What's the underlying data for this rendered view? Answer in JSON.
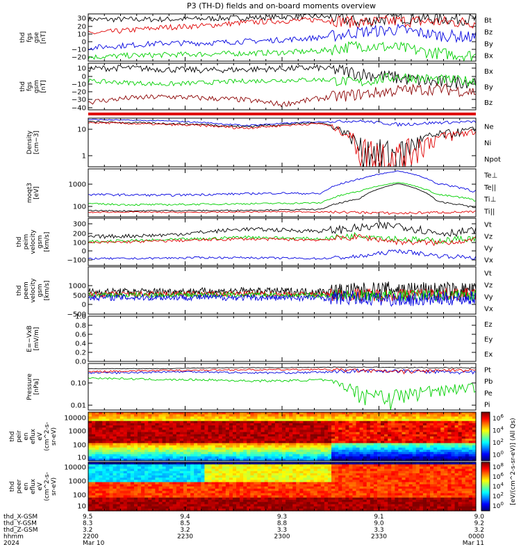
{
  "title": "P3 (TH-D) fields and on-board moments overview",
  "colors": {
    "black": "#000000",
    "red": "#e00000",
    "green": "#00d000",
    "blue": "#0000e0",
    "darkred": "#8b0000"
  },
  "panels": [
    {
      "id": "fgs_gse",
      "ylabel": [
        "thd",
        "fgs",
        "gse",
        "[nT]"
      ],
      "ticks": [
        "30",
        "20",
        "10",
        "0",
        "−10",
        "−20"
      ],
      "legend": [
        {
          "label": "Bt",
          "color": "black"
        },
        {
          "label": "Bz",
          "color": "red"
        },
        {
          "label": "By",
          "color": "green"
        },
        {
          "label": "Bx",
          "color": "blue"
        }
      ]
    },
    {
      "id": "fgs_gsm",
      "ylabel": [
        "thd",
        "fgs",
        "gsm",
        "[nT]"
      ],
      "ticks": [
        "10",
        "0",
        "−10",
        "−20",
        "−30",
        "−40"
      ],
      "legend": [
        {
          "label": "Bx",
          "color": "black"
        },
        {
          "label": "By",
          "color": "green"
        },
        {
          "label": "Bz",
          "color": "darkred"
        }
      ]
    },
    {
      "id": "density",
      "ylabel": [
        "Density",
        "[cm−3]"
      ],
      "ticks": [
        "10",
        "1"
      ],
      "legend": [
        {
          "label": "Ne",
          "color": "red"
        },
        {
          "label": "Ni",
          "color": "black"
        },
        {
          "label": "Npot",
          "color": "blue"
        }
      ]
    },
    {
      "id": "temp",
      "ylabel": [
        "moqt3",
        "[eV]"
      ],
      "ticks": [
        "1000",
        "100"
      ],
      "legend": [
        {
          "label": "Te⊥",
          "color": "red"
        },
        {
          "label": "Te||",
          "color": "black"
        },
        {
          "label": "Ti⊥",
          "color": "blue"
        },
        {
          "label": "Ti||",
          "color": "green"
        }
      ]
    },
    {
      "id": "peim_vel",
      "ylabel": [
        "thd",
        "peim",
        "velocity",
        "gsm",
        "[km/s]"
      ],
      "ticks": [
        "300",
        "200",
        "100",
        "0",
        "−100"
      ],
      "legend": [
        {
          "label": "Vt",
          "color": "black"
        },
        {
          "label": "Vz",
          "color": "red"
        },
        {
          "label": "Vy",
          "color": "green"
        },
        {
          "label": "Vx",
          "color": "blue"
        }
      ]
    },
    {
      "id": "peem_vel",
      "ylabel": [
        "thd",
        "peem",
        "velocity",
        "gsm",
        "[km/s]"
      ],
      "ticks": [
        "1000",
        "500",
        "0",
        "−500"
      ],
      "legend": [
        {
          "label": "Vt",
          "color": "black"
        },
        {
          "label": "Vz",
          "color": "red"
        },
        {
          "label": "Vy",
          "color": "green"
        },
        {
          "label": "Vx",
          "color": "blue"
        }
      ]
    },
    {
      "id": "efield",
      "ylabel": [
        "E=−VxB",
        "[mV/m]"
      ],
      "ticks": [
        "1.0",
        "0.8",
        "0.6",
        "0.4",
        "0.2",
        "0.0"
      ],
      "legend": [
        {
          "label": "Ez",
          "color": "red"
        },
        {
          "label": "Ey",
          "color": "green"
        },
        {
          "label": "Ex",
          "color": "blue"
        }
      ]
    },
    {
      "id": "pressure",
      "ylabel": [
        "Pressure",
        "[nPa]"
      ],
      "ticks": [
        "0.10",
        "0.01"
      ],
      "legend": [
        {
          "label": "Pt",
          "color": "black"
        },
        {
          "label": "Pb",
          "color": "red"
        },
        {
          "label": "Pe",
          "color": "green"
        },
        {
          "label": "Pi",
          "color": "blue"
        }
      ]
    },
    {
      "id": "peir",
      "ylabel": [
        "thd",
        "peir",
        "en",
        "eflux",
        "eV",
        "(cm^2-s-",
        "sr-eV)"
      ],
      "ticks": [
        "10000",
        "1000",
        "100",
        "10"
      ]
    },
    {
      "id": "peer",
      "ylabel": [
        "thd",
        "peer",
        "en",
        "eflux",
        "eV",
        "(cm^2-s-",
        "sr-eV)"
      ],
      "ticks": [
        "10000",
        "1000",
        "100",
        "10"
      ]
    }
  ],
  "colorbar": {
    "label": "[eV/(cm^2-s-sr-eV)] (All Qs)",
    "ticks_top": [
      "10^6",
      "10^4",
      "10^2",
      "10^0"
    ],
    "ticks_bottom": [
      "10^8",
      "10^6",
      "10^4",
      "10^2",
      "10^0"
    ]
  },
  "time_axis": {
    "row_labels": [
      "thd_X-GSM",
      "thd_Y-GSM",
      "thd_Z-GSM",
      "hhmm",
      "2024"
    ],
    "columns": [
      {
        "x": "9.5",
        "y": "8.3",
        "z": "3.2",
        "hhmm": "2200",
        "date": "Mar 10"
      },
      {
        "x": "9.4",
        "y": "8.5",
        "z": "3.2",
        "hhmm": "2230",
        "date": ""
      },
      {
        "x": "9.3",
        "y": "8.8",
        "z": "3.3",
        "hhmm": "2300",
        "date": ""
      },
      {
        "x": "9.1",
        "y": "9.0",
        "z": "3.3",
        "hhmm": "2330",
        "date": ""
      },
      {
        "x": "9.0",
        "y": "9.2",
        "z": "3.2",
        "hhmm": "0000",
        "date": "Mar 11"
      }
    ]
  },
  "chart_data": {
    "type": "line",
    "title": "P3 (TH-D) fields and on-board moments overview",
    "x_range": [
      "2024-03-10 22:00",
      "2024-03-11 00:00"
    ],
    "x_ticks": [
      "2200",
      "2230",
      "2300",
      "2330",
      "0000"
    ],
    "series_summary": [
      {
        "panel": "fgs_gse",
        "name": "Bt",
        "values": [
          28,
          28,
          28,
          29,
          30,
          31,
          32,
          25,
          30,
          29,
          28
        ],
        "ylim": [
          -25,
          35
        ]
      },
      {
        "panel": "fgs_gse",
        "name": "Bz",
        "values": [
          10,
          14,
          18,
          20,
          24,
          26,
          28,
          24,
          26,
          25,
          24
        ],
        "ylim": [
          -25,
          35
        ]
      },
      {
        "panel": "fgs_gse",
        "name": "By",
        "values": [
          -20,
          -18,
          -17,
          -16,
          -15,
          -14,
          -12,
          -5,
          -8,
          -15,
          -18
        ],
        "ylim": [
          -25,
          35
        ]
      },
      {
        "panel": "fgs_gse",
        "name": "Bx",
        "values": [
          -8,
          -5,
          -2,
          -2,
          0,
          2,
          5,
          12,
          15,
          8,
          5
        ],
        "ylim": [
          -25,
          35
        ]
      },
      {
        "panel": "density",
        "name": "Ni",
        "values": [
          15,
          14,
          13,
          12,
          10,
          12,
          14,
          2,
          1,
          5,
          8
        ],
        "ylim": [
          0.4,
          20
        ]
      },
      {
        "panel": "pressure",
        "name": "Pt",
        "values": [
          0.3,
          0.3,
          0.3,
          0.32,
          0.33,
          0.33,
          0.34,
          0.35,
          0.33,
          0.33,
          0.32
        ],
        "ylim": [
          0.005,
          0.5
        ]
      }
    ]
  }
}
